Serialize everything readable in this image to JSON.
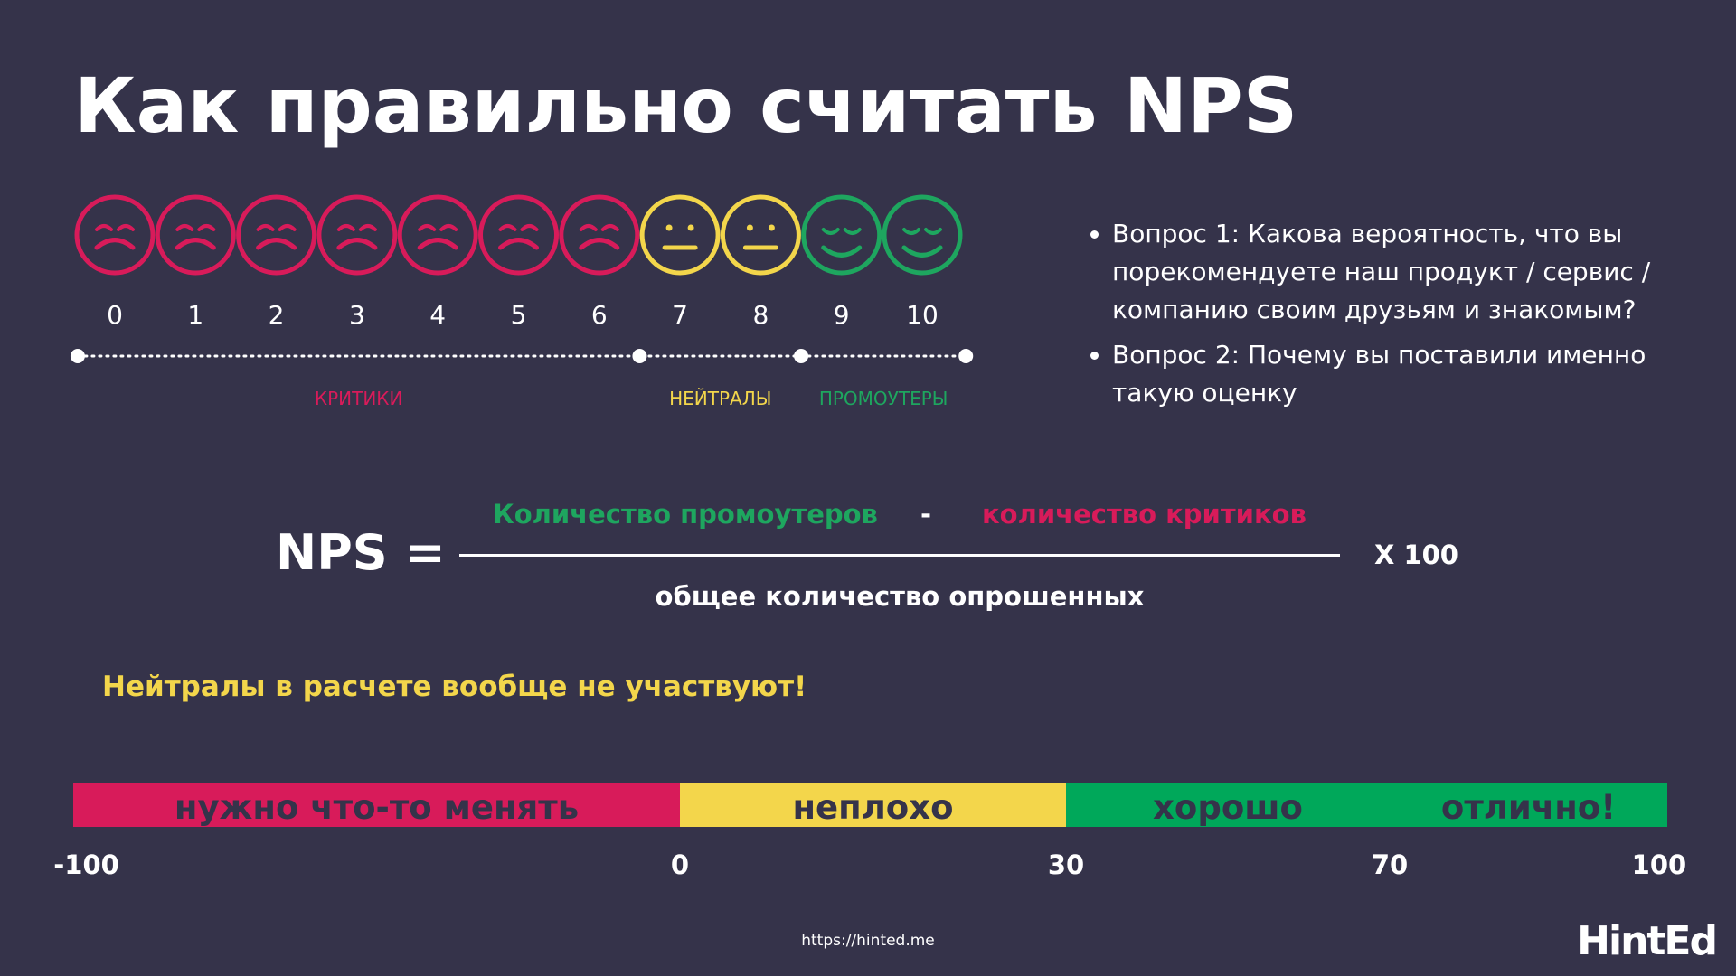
{
  "title": "Как правильно считать NPS",
  "scale": {
    "groups": [
      {
        "label": "КРИТИКИ",
        "color": "#d81b5a",
        "scores": [
          0,
          1,
          2,
          3,
          4,
          5,
          6
        ]
      },
      {
        "label": "НЕЙТРАЛЫ",
        "color": "#f3d64b",
        "scores": [
          7,
          8
        ]
      },
      {
        "label": "ПРОМОУТЕРЫ",
        "color": "#1ea65f",
        "scores": [
          9,
          10
        ]
      }
    ]
  },
  "questions": [
    "Вопрос 1: Какова вероятность, что вы порекомендуете наш продукт / сервис / компанию своим друзьям и знакомым?",
    "Вопрос 2: Почему вы поставили именно такую оценку"
  ],
  "formula": {
    "lhs": "NPS =",
    "numerator_left": "Количество промоутеров",
    "operator": "-",
    "numerator_right": "количество критиков",
    "denominator": "общее количество опрошенных",
    "multiplier": "X 100"
  },
  "note": "Нейтралы в расчете вообще не участвуют!",
  "bar": {
    "segments": [
      {
        "label": "нужно что-то менять",
        "color": "#d81b5a"
      },
      {
        "label": "неплохо",
        "color": "#f3d64b"
      },
      {
        "label": "хорошо",
        "color": "#00a85a"
      },
      {
        "label": "отлично!",
        "color": "#00a85a"
      }
    ],
    "ticks": [
      -100,
      0,
      30,
      70,
      100
    ]
  },
  "footer": {
    "url": "https://hinted.me",
    "logo": "HintEd"
  }
}
